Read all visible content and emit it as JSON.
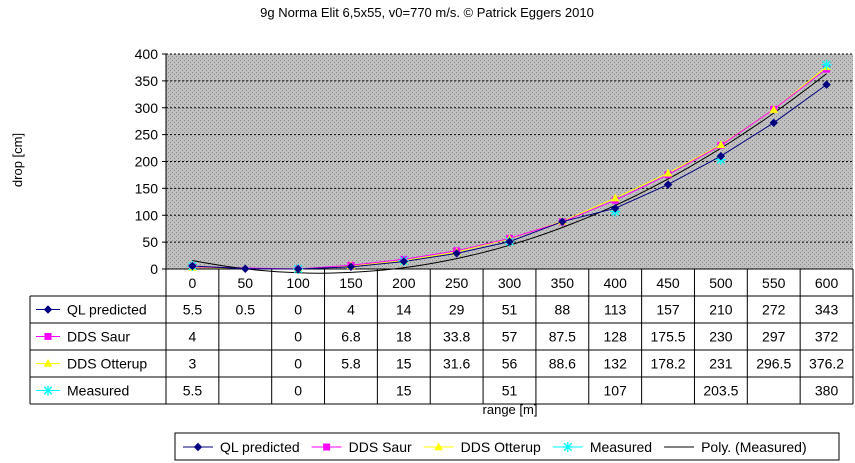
{
  "chart_data": {
    "type": "line",
    "title": "9g Norma Elit 6,5x55, v0=770 m/s. © Patrick Eggers 2010",
    "xlabel": "range [m]",
    "ylabel": "drop [cm]",
    "ylim": [
      0,
      400
    ],
    "yticks": [
      0,
      50,
      100,
      150,
      200,
      250,
      300,
      350,
      400
    ],
    "categories": [
      "0",
      "50",
      "100",
      "150",
      "200",
      "250",
      "300",
      "350",
      "400",
      "450",
      "500",
      "550",
      "600"
    ],
    "grid": true,
    "legend_position": "bottom",
    "series": [
      {
        "name": "QL predicted",
        "color": "#000080",
        "marker": "diamond",
        "values": [
          5.5,
          0.5,
          0,
          4,
          14,
          29,
          51,
          88,
          113,
          157,
          210,
          272,
          343
        ]
      },
      {
        "name": "DDS Saur",
        "color": "#ff00ff",
        "marker": "square",
        "values": [
          4,
          null,
          0,
          6.8,
          18,
          33.8,
          57,
          87.5,
          128,
          175.5,
          230,
          297,
          372
        ]
      },
      {
        "name": "DDS Otterup",
        "color": "#ffff00",
        "marker": "triangle",
        "values": [
          3,
          null,
          0,
          5.8,
          15,
          31.6,
          56,
          88.6,
          132,
          178.2,
          231,
          296.5,
          376.2
        ]
      },
      {
        "name": "Measured",
        "color": "#00ffff",
        "marker": "star",
        "values": [
          5.5,
          null,
          0,
          null,
          15,
          null,
          51,
          null,
          107,
          null,
          203.5,
          null,
          380
        ]
      }
    ],
    "trendline": {
      "name": "Poly. (Measured)",
      "color": "#000000"
    }
  }
}
